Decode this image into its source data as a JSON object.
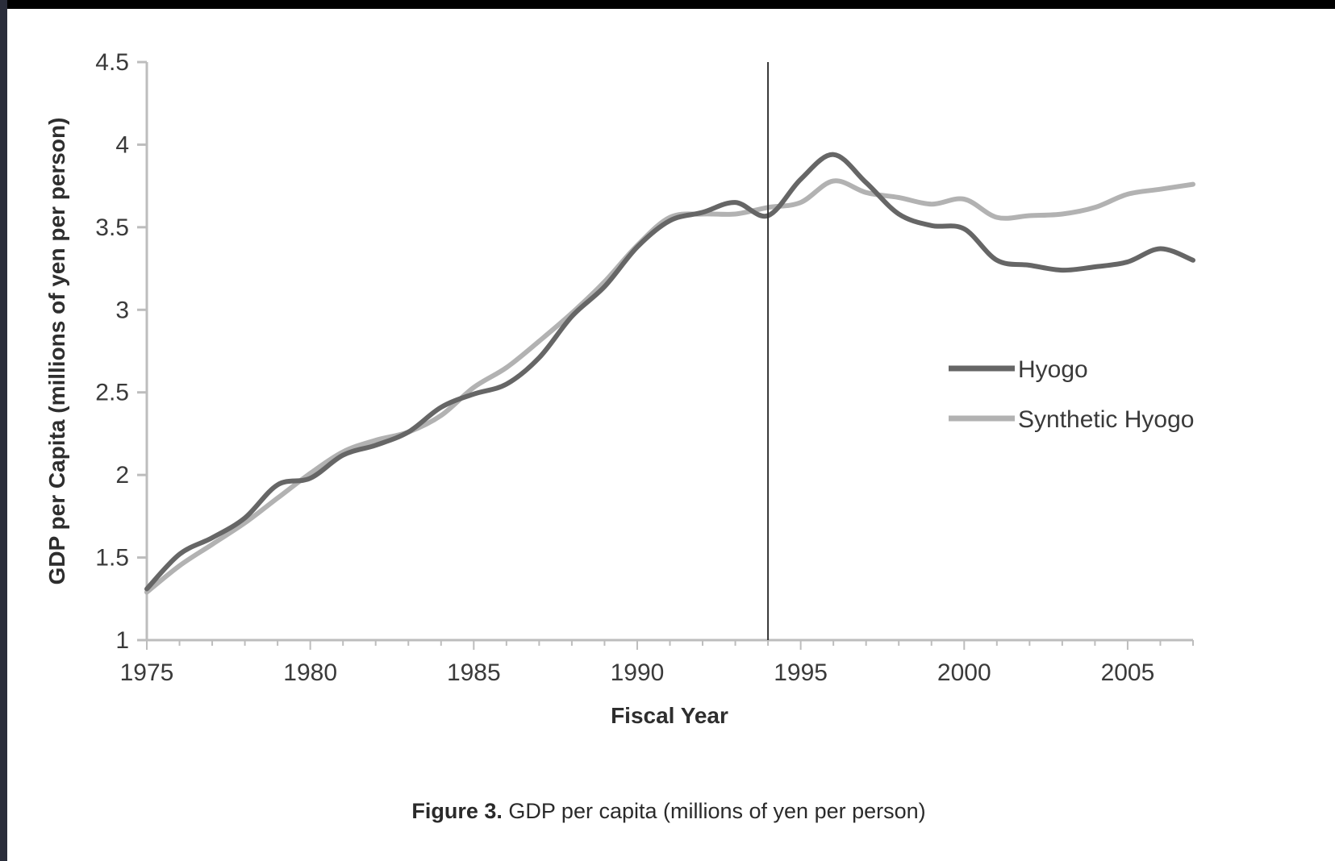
{
  "figure": {
    "caption_label": "Figure 3.",
    "caption_text": "GDP per capita (millions of yen per person)"
  },
  "colors": {
    "hyogo": "#666666",
    "synthetic": "#b2b2b2",
    "axis": "#bdbdbd",
    "intervention_line": "#333333"
  },
  "chart_data": {
    "type": "line",
    "xlabel": "Fiscal Year",
    "ylabel": "GDP per Capita (millions of yen per person)",
    "xlim": [
      1975,
      2007
    ],
    "ylim": [
      1,
      4.5
    ],
    "x_ticks": [
      1975,
      1980,
      1985,
      1990,
      1995,
      2000,
      2005
    ],
    "y_ticks": [
      "1",
      "1.5",
      "2",
      "2.5",
      "3",
      "3.5",
      "4",
      "4.5"
    ],
    "grid": false,
    "legend_position": "right",
    "vertical_marker_x": 1994,
    "x": [
      1975,
      1976,
      1977,
      1978,
      1979,
      1980,
      1981,
      1982,
      1983,
      1984,
      1985,
      1986,
      1987,
      1988,
      1989,
      1990,
      1991,
      1992,
      1993,
      1994,
      1995,
      1996,
      1997,
      1998,
      1999,
      2000,
      2001,
      2002,
      2003,
      2004,
      2005,
      2006,
      2007
    ],
    "series": [
      {
        "name": "Hyogo",
        "values": [
          1.31,
          1.52,
          1.62,
          1.74,
          1.94,
          1.98,
          2.12,
          2.18,
          2.26,
          2.41,
          2.49,
          2.55,
          2.71,
          2.96,
          3.14,
          3.38,
          3.54,
          3.59,
          3.65,
          3.57,
          3.79,
          3.94,
          3.77,
          3.58,
          3.51,
          3.49,
          3.3,
          3.27,
          3.24,
          3.26,
          3.29,
          3.37,
          3.3
        ]
      },
      {
        "name": "Synthetic Hyogo",
        "values": [
          1.29,
          1.45,
          1.58,
          1.71,
          1.86,
          2.01,
          2.14,
          2.21,
          2.26,
          2.36,
          2.53,
          2.65,
          2.81,
          2.98,
          3.17,
          3.39,
          3.56,
          3.58,
          3.58,
          3.62,
          3.65,
          3.78,
          3.71,
          3.68,
          3.64,
          3.67,
          3.56,
          3.57,
          3.58,
          3.62,
          3.7,
          3.73,
          3.76
        ]
      }
    ]
  }
}
